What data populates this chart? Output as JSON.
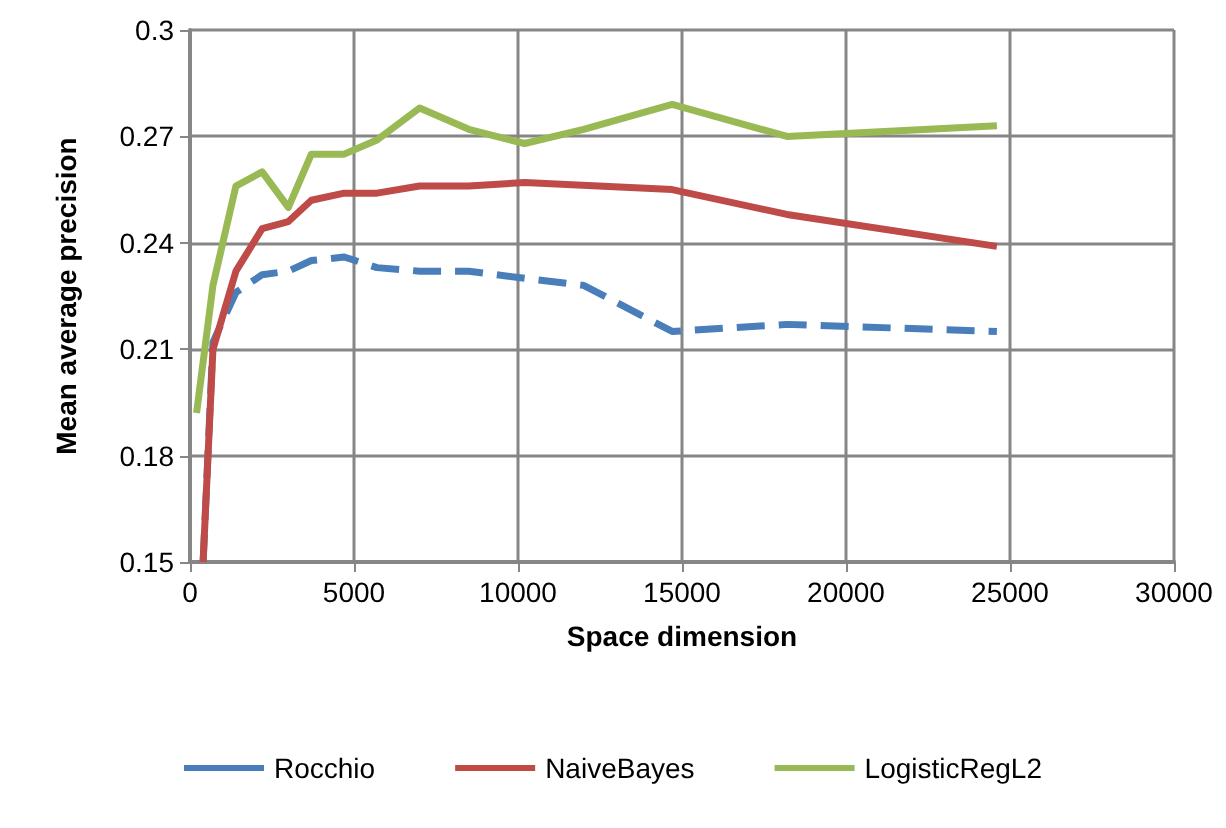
{
  "chart_data": {
    "type": "line",
    "xlabel": "Space dimension",
    "ylabel": "Mean average precision",
    "xlim": [
      0,
      30000
    ],
    "xticks": [
      0,
      5000,
      10000,
      15000,
      20000,
      25000,
      30000
    ],
    "ylim": [
      0.15,
      0.3
    ],
    "yticks": [
      0.15,
      0.18,
      0.21,
      0.24,
      0.27,
      0.3
    ],
    "grid": true,
    "legend": "bottom",
    "marker": "none",
    "series": [
      {
        "name": "Rocchio",
        "color": "#4a7ebb",
        "line_style": "dashed",
        "x": [
          400,
          700,
          1400,
          2200,
          3000,
          3700,
          4700,
          5700,
          7000,
          8500,
          10200,
          12000,
          14700,
          18200,
          24600
        ],
        "values": [
          0.15,
          0.212,
          0.226,
          0.231,
          0.232,
          0.235,
          0.236,
          0.233,
          0.232,
          0.232,
          0.23,
          0.228,
          0.215,
          0.217,
          0.215
        ]
      },
      {
        "name": "NaiveBayes",
        "color": "#be4b48",
        "line_style": "solid",
        "x": [
          400,
          700,
          1400,
          2200,
          3000,
          3700,
          4700,
          5700,
          7000,
          8500,
          10200,
          14700,
          18200,
          24600
        ],
        "values": [
          0.15,
          0.21,
          0.232,
          0.244,
          0.246,
          0.252,
          0.254,
          0.254,
          0.256,
          0.256,
          0.257,
          0.255,
          0.248,
          0.239
        ]
      },
      {
        "name": "LogisticRegL2",
        "color": "#98b954",
        "line_style": "solid",
        "x": [
          200,
          700,
          1400,
          2200,
          3000,
          3700,
          4700,
          5700,
          7000,
          8500,
          10200,
          12000,
          14700,
          18200,
          24600
        ],
        "values": [
          0.192,
          0.228,
          0.256,
          0.26,
          0.25,
          0.265,
          0.265,
          0.269,
          0.278,
          0.272,
          0.268,
          0.272,
          0.279,
          0.27,
          0.273
        ]
      }
    ]
  }
}
